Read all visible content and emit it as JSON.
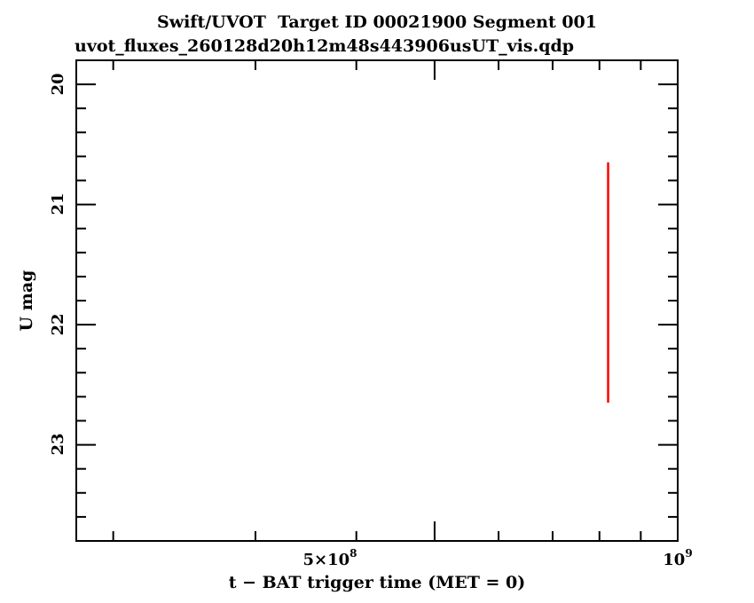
{
  "chart_data": {
    "type": "scatter",
    "title": "Swift/UVOT  Target ID 00021900 Segment 001",
    "subtitle": "uvot_fluxes_260128d20h12m48s443906usUT_vis.qdp",
    "xlabel": "t − BAT trigger time (MET = 0)",
    "ylabel": "U mag",
    "x_scale": "log",
    "xlim": [
      180000000,
      1000000000
    ],
    "ylim": [
      23.8,
      19.8
    ],
    "y_inverted": true,
    "x_ticks": [
      {
        "value": 500000000,
        "mantissa": "5×10",
        "exponent": "8"
      },
      {
        "value": 1000000000,
        "mantissa": "10",
        "exponent": "9"
      }
    ],
    "y_ticks": [
      "20",
      "21",
      "22",
      "23"
    ],
    "grid": false,
    "series": [
      {
        "color": "#ff0000",
        "points": [
          {
            "x": 820000000,
            "y": 21.65,
            "y_err": 1.0
          }
        ]
      }
    ]
  }
}
